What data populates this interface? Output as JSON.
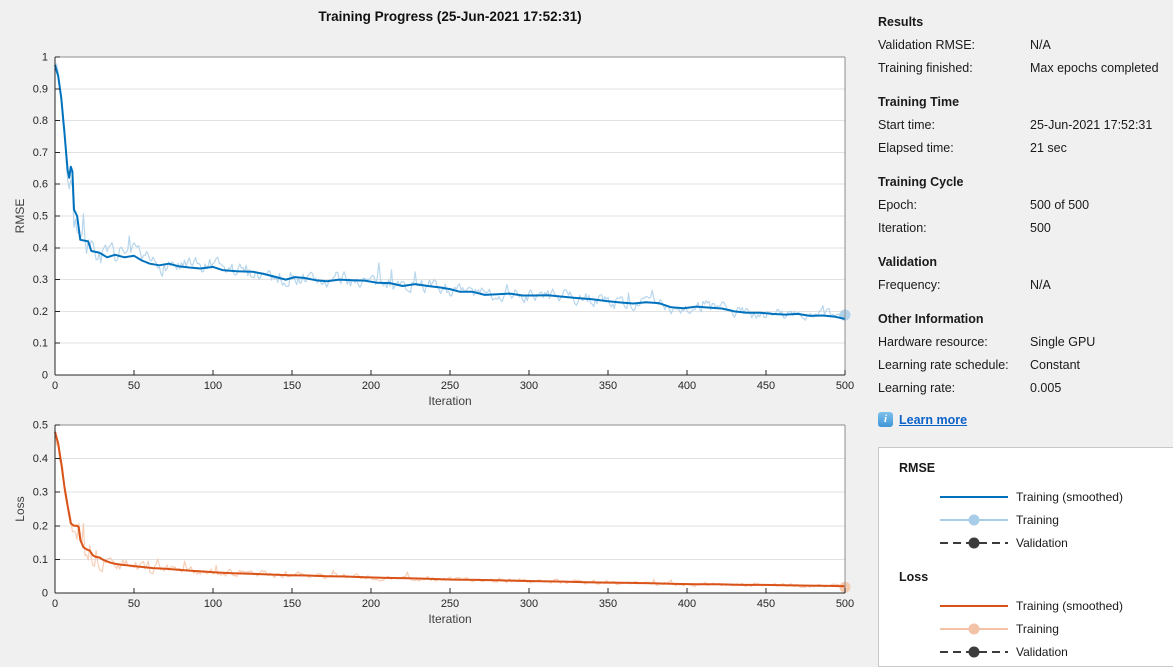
{
  "window": {
    "title": "Training Progress (25-Jun-2021 17:52:31)",
    "background": "#f0f0f0",
    "link_color": "#0b62c9"
  },
  "right_panel": {
    "sections": [
      {
        "title": "Results",
        "rows": [
          {
            "label": "Validation RMSE:",
            "value": "N/A"
          },
          {
            "label": "Training finished:",
            "value": "Max epochs completed"
          }
        ]
      },
      {
        "title": "Training Time",
        "rows": [
          {
            "label": "Start time:",
            "value": "25-Jun-2021 17:52:31"
          },
          {
            "label": "Elapsed time:",
            "value": "21 sec"
          }
        ]
      },
      {
        "title": "Training Cycle",
        "rows": [
          {
            "label": "Epoch:",
            "value": "500 of 500"
          },
          {
            "label": "Iteration:",
            "value": "500"
          }
        ]
      },
      {
        "title": "Validation",
        "rows": [
          {
            "label": "Frequency:",
            "value": "N/A"
          }
        ]
      },
      {
        "title": "Other Information",
        "rows": [
          {
            "label": "Hardware resource:",
            "value": "Single GPU"
          },
          {
            "label": "Learning rate schedule:",
            "value": "Constant"
          },
          {
            "label": "Learning rate:",
            "value": "0.005"
          }
        ]
      }
    ],
    "learn_more": {
      "label": "Learn more",
      "icon": "info-icon"
    }
  },
  "legend": {
    "groups": [
      {
        "title": "RMSE",
        "items": [
          {
            "label": "Training (smoothed)",
            "swatch": {
              "color": "#0072bd",
              "dashed": false,
              "marker": false
            }
          },
          {
            "label": "Training",
            "swatch": {
              "color": "#a8cde9",
              "dashed": false,
              "marker": true
            }
          },
          {
            "label": "Validation",
            "swatch": {
              "color": "#3b3b3b",
              "dashed": true,
              "marker": true
            }
          }
        ]
      },
      {
        "title": "Loss",
        "items": [
          {
            "label": "Training (smoothed)",
            "swatch": {
              "color": "#d95319",
              "dashed": false,
              "marker": false
            }
          },
          {
            "label": "Training",
            "swatch": {
              "color": "#f3c2a7",
              "dashed": false,
              "marker": true
            }
          },
          {
            "label": "Validation",
            "swatch": {
              "color": "#3b3b3b",
              "dashed": true,
              "marker": true
            }
          }
        ]
      }
    ]
  },
  "chart_data": [
    {
      "id": "rmse",
      "type": "line",
      "title": "",
      "xlabel": "Iteration",
      "ylabel": "RMSE",
      "xlim": [
        0,
        500
      ],
      "ylim": [
        0,
        1
      ],
      "xticks": [
        0,
        50,
        100,
        150,
        200,
        250,
        300,
        350,
        400,
        450,
        500
      ],
      "yticks": [
        0,
        0.1,
        0.2,
        0.3,
        0.4,
        0.5,
        0.6,
        0.7,
        0.8,
        0.9,
        1
      ],
      "grid": "horizontal",
      "legend_position": "external-right",
      "series": [
        {
          "name": "Training",
          "role": "raw",
          "color": "#abcfe9",
          "width": 1.2,
          "seed": 7,
          "derived_from": "smoothed",
          "noise_profile": [
            [
              0,
              0.045
            ],
            [
              8,
              0.06
            ],
            [
              16,
              0.055
            ],
            [
              30,
              0.035
            ],
            [
              60,
              0.03
            ],
            [
              120,
              0.026
            ],
            [
              250,
              0.022
            ],
            [
              400,
              0.02
            ],
            [
              500,
              0.018
            ]
          ],
          "end_marker": true
        },
        {
          "name": "Training (smoothed)",
          "role": "smoothed",
          "color": "#0072bd",
          "width": 2,
          "points": [
            [
              0,
              0.975
            ],
            [
              2,
              0.94
            ],
            [
              4,
              0.87
            ],
            [
              6,
              0.76
            ],
            [
              8,
              0.645
            ],
            [
              9,
              0.62
            ],
            [
              10,
              0.655
            ],
            [
              11,
              0.64
            ],
            [
              12,
              0.52
            ],
            [
              14,
              0.5
            ],
            [
              16,
              0.425
            ],
            [
              21,
              0.42
            ],
            [
              23,
              0.39
            ],
            [
              28,
              0.385
            ],
            [
              33,
              0.37
            ],
            [
              38,
              0.378
            ],
            [
              44,
              0.37
            ],
            [
              50,
              0.375
            ],
            [
              55,
              0.36
            ],
            [
              60,
              0.35
            ],
            [
              66,
              0.345
            ],
            [
              72,
              0.35
            ],
            [
              78,
              0.342
            ],
            [
              85,
              0.338
            ],
            [
              92,
              0.335
            ],
            [
              100,
              0.34
            ],
            [
              106,
              0.33
            ],
            [
              115,
              0.326
            ],
            [
              125,
              0.325
            ],
            [
              132,
              0.318
            ],
            [
              140,
              0.308
            ],
            [
              146,
              0.3
            ],
            [
              152,
              0.308
            ],
            [
              158,
              0.305
            ],
            [
              165,
              0.298
            ],
            [
              172,
              0.295
            ],
            [
              180,
              0.3
            ],
            [
              188,
              0.298
            ],
            [
              196,
              0.297
            ],
            [
              204,
              0.29
            ],
            [
              212,
              0.289
            ],
            [
              220,
              0.28
            ],
            [
              228,
              0.286
            ],
            [
              236,
              0.28
            ],
            [
              244,
              0.275
            ],
            [
              250,
              0.27
            ],
            [
              256,
              0.262
            ],
            [
              264,
              0.262
            ],
            [
              272,
              0.252
            ],
            [
              280,
              0.254
            ],
            [
              288,
              0.256
            ],
            [
              296,
              0.25
            ],
            [
              304,
              0.25
            ],
            [
              312,
              0.251
            ],
            [
              320,
              0.247
            ],
            [
              330,
              0.242
            ],
            [
              340,
              0.238
            ],
            [
              350,
              0.232
            ],
            [
              358,
              0.228
            ],
            [
              366,
              0.225
            ],
            [
              374,
              0.229
            ],
            [
              382,
              0.226
            ],
            [
              390,
              0.213
            ],
            [
              398,
              0.21
            ],
            [
              406,
              0.215
            ],
            [
              414,
              0.212
            ],
            [
              422,
              0.209
            ],
            [
              430,
              0.2
            ],
            [
              438,
              0.196
            ],
            [
              446,
              0.196
            ],
            [
              454,
              0.192
            ],
            [
              462,
              0.19
            ],
            [
              470,
              0.192
            ],
            [
              478,
              0.186
            ],
            [
              486,
              0.187
            ],
            [
              494,
              0.183
            ],
            [
              500,
              0.176
            ]
          ]
        }
      ]
    },
    {
      "id": "loss",
      "type": "line",
      "title": "",
      "xlabel": "Iteration",
      "ylabel": "Loss",
      "xlim": [
        0,
        500
      ],
      "ylim": [
        0,
        0.5
      ],
      "xticks": [
        0,
        50,
        100,
        150,
        200,
        250,
        300,
        350,
        400,
        450,
        500
      ],
      "yticks": [
        0,
        0.1,
        0.2,
        0.3,
        0.4,
        0.5
      ],
      "grid": "horizontal",
      "legend_position": "external-right",
      "series": [
        {
          "name": "Training",
          "role": "raw",
          "color": "#f4c5aa",
          "width": 1.2,
          "seed": 13,
          "derived_from": "smoothed",
          "noise_profile": [
            [
              0,
              0.03
            ],
            [
              10,
              0.042
            ],
            [
              25,
              0.04
            ],
            [
              40,
              0.02
            ],
            [
              70,
              0.013
            ],
            [
              120,
              0.01
            ],
            [
              250,
              0.007
            ],
            [
              500,
              0.005
            ]
          ],
          "end_marker": true
        },
        {
          "name": "Training (smoothed)",
          "role": "smoothed",
          "color": "#d95319",
          "width": 2,
          "points": [
            [
              0,
              0.48
            ],
            [
              2,
              0.445
            ],
            [
              4,
              0.385
            ],
            [
              6,
              0.315
            ],
            [
              8,
              0.26
            ],
            [
              10,
              0.207
            ],
            [
              12,
              0.2
            ],
            [
              14,
              0.2
            ],
            [
              15,
              0.196
            ],
            [
              16,
              0.158
            ],
            [
              18,
              0.136
            ],
            [
              20,
              0.13
            ],
            [
              22,
              0.126
            ],
            [
              24,
              0.112
            ],
            [
              26,
              0.107
            ],
            [
              28,
              0.106
            ],
            [
              30,
              0.1
            ],
            [
              34,
              0.092
            ],
            [
              38,
              0.087
            ],
            [
              42,
              0.084
            ],
            [
              46,
              0.082
            ],
            [
              50,
              0.08
            ],
            [
              56,
              0.077
            ],
            [
              62,
              0.074
            ],
            [
              70,
              0.072
            ],
            [
              78,
              0.069
            ],
            [
              86,
              0.066
            ],
            [
              94,
              0.064
            ],
            [
              100,
              0.062
            ],
            [
              112,
              0.059
            ],
            [
              124,
              0.057
            ],
            [
              136,
              0.055
            ],
            [
              148,
              0.053
            ],
            [
              160,
              0.052
            ],
            [
              172,
              0.05
            ],
            [
              184,
              0.049
            ],
            [
              196,
              0.047
            ],
            [
              210,
              0.045
            ],
            [
              224,
              0.044
            ],
            [
              238,
              0.042
            ],
            [
              252,
              0.04
            ],
            [
              266,
              0.039
            ],
            [
              280,
              0.038
            ],
            [
              294,
              0.036
            ],
            [
              308,
              0.035
            ],
            [
              322,
              0.034
            ],
            [
              336,
              0.032
            ],
            [
              350,
              0.031
            ],
            [
              364,
              0.03
            ],
            [
              378,
              0.029
            ],
            [
              392,
              0.027
            ],
            [
              406,
              0.026
            ],
            [
              420,
              0.026
            ],
            [
              434,
              0.024
            ],
            [
              448,
              0.024
            ],
            [
              462,
              0.023
            ],
            [
              476,
              0.022
            ],
            [
              490,
              0.021
            ],
            [
              500,
              0.02
            ]
          ]
        }
      ]
    }
  ]
}
